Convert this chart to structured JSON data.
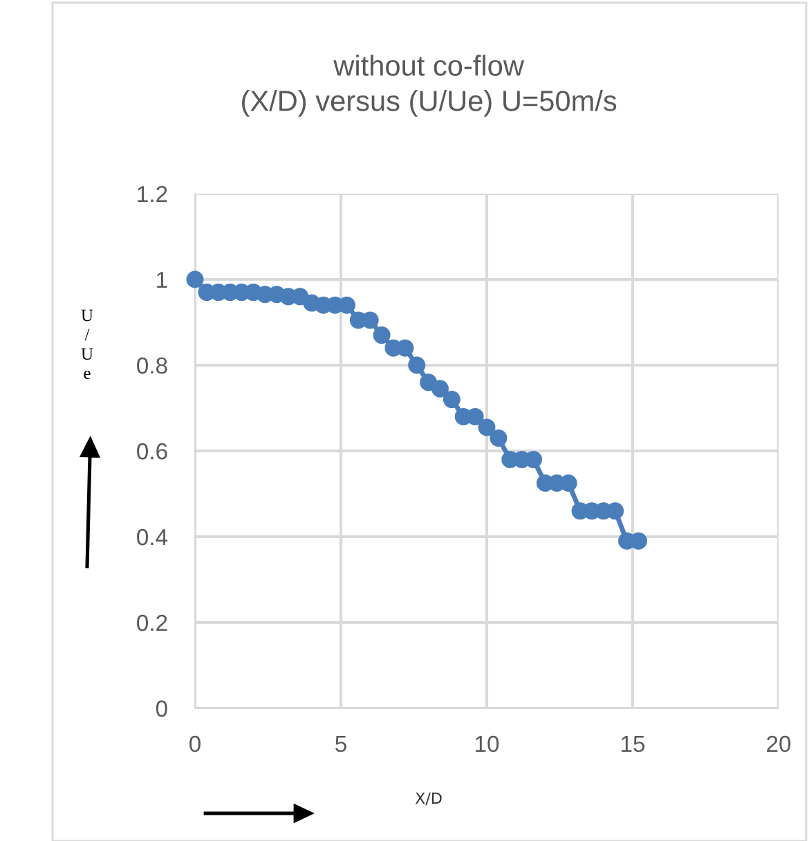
{
  "chart_data": {
    "type": "line",
    "title": "without co-flow\n(X/D) versus (U/Ue) U=50m/s",
    "xlabel": "X/D",
    "ylabel": "U/Ue",
    "x": [
      0,
      0.4,
      0.8,
      1.2,
      1.6,
      2.0,
      2.4,
      2.8,
      3.2,
      3.6,
      4.0,
      4.4,
      4.8,
      5.2,
      5.6,
      6.0,
      6.4,
      6.8,
      7.2,
      7.6,
      8.0,
      8.4,
      8.8,
      9.2,
      9.6,
      10.0,
      10.4,
      10.8,
      11.2,
      11.6,
      12.0,
      12.4,
      12.8,
      13.2,
      13.6,
      14.0,
      14.4,
      14.8,
      15.2
    ],
    "series": [
      {
        "color": "#4a7ebb",
        "values": [
          1.0,
          0.97,
          0.97,
          0.97,
          0.97,
          0.97,
          0.965,
          0.965,
          0.96,
          0.96,
          0.945,
          0.94,
          0.94,
          0.94,
          0.905,
          0.905,
          0.87,
          0.84,
          0.84,
          0.8,
          0.76,
          0.745,
          0.72,
          0.68,
          0.68,
          0.655,
          0.63,
          0.58,
          0.58,
          0.58,
          0.525,
          0.525,
          0.525,
          0.46,
          0.46,
          0.46,
          0.46,
          0.39,
          0.39
        ]
      }
    ],
    "xlim": [
      0,
      20
    ],
    "xticks": [
      0,
      5,
      10,
      15,
      20
    ],
    "ylim": [
      0,
      1.2
    ],
    "yticks": [
      0,
      0.2,
      0.4,
      0.6,
      0.8,
      1,
      1.2
    ],
    "grid": true,
    "marker": "circle",
    "line_style": "solid"
  }
}
